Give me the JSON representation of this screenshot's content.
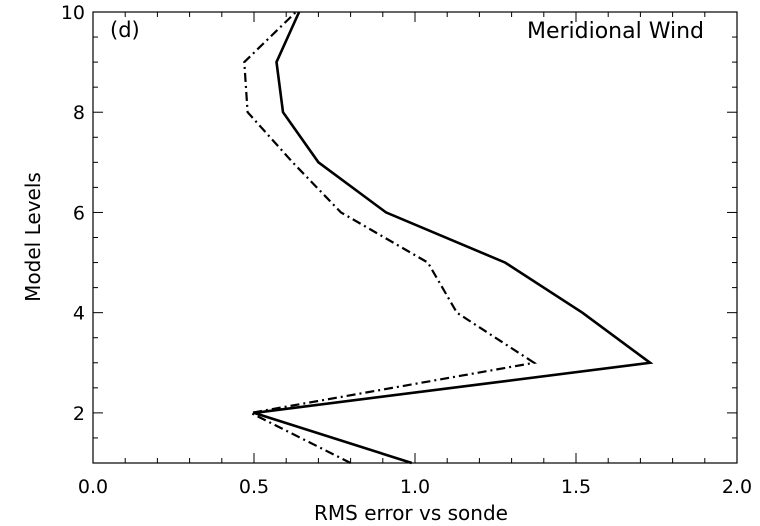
{
  "chart_data": {
    "type": "line",
    "title": "Meridional Wind",
    "panel_label": "(d)",
    "xlabel": "RMS error vs sonde",
    "ylabel": "Model Levels",
    "xlim": [
      0.0,
      2.0
    ],
    "ylim": [
      1,
      10
    ],
    "x_ticks": [
      0.0,
      0.5,
      1.0,
      1.5,
      2.0
    ],
    "x_tick_labels": [
      "0.0",
      "0.5",
      "1.0",
      "1.5",
      "2.0"
    ],
    "y_ticks": [
      2,
      4,
      6,
      8,
      10
    ],
    "y_tick_labels": [
      "2",
      "4",
      "6",
      "8",
      "10"
    ],
    "grid": false,
    "series": [
      {
        "style": "solid",
        "color": "#000000",
        "x": [
          0.99,
          0.5,
          1.73,
          1.52,
          1.28,
          0.91,
          0.7,
          0.59,
          0.57,
          0.64
        ],
        "y": [
          1,
          2,
          3,
          4,
          5,
          6,
          7,
          8,
          9,
          10
        ]
      },
      {
        "style": "dash-dot",
        "color": "#000000",
        "x": [
          0.8,
          0.49,
          1.37,
          1.13,
          1.04,
          0.77,
          0.62,
          0.48,
          0.47,
          0.63
        ],
        "y": [
          1,
          2,
          3,
          4,
          5,
          6,
          7,
          8,
          9,
          10
        ]
      }
    ]
  }
}
